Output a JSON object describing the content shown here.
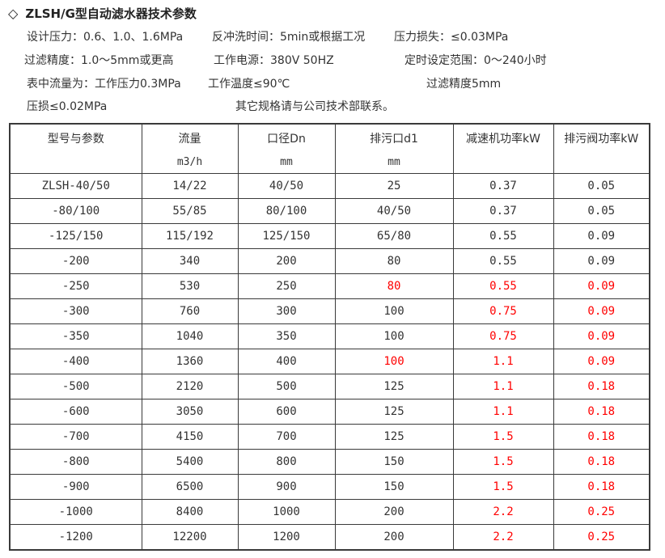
{
  "title": {
    "diamond": "◇",
    "text": "ZLSH/G型自动滤水器技术参数"
  },
  "params": {
    "design_pressure": "设计压力：0.6、1.0、1.6MPa",
    "backwash_time": "反冲洗时间：5min或根据工况",
    "pressure_loss": "压力损失：≤0.03MPa",
    "filter_precision": "过滤精度：1.0～5mm或更高",
    "power_supply": "工作电源：380V 50HZ",
    "timer_range": "定时设定范围：0～240小时",
    "flow_note": "表中流量为：工作压力0.3MPa",
    "working_temp": "工作温度≤90℃",
    "precision_5mm": "过滤精度5mm",
    "pressure_drop": "压损≤0.02MPa",
    "contact_note": "其它规格请与公司技术部联系。"
  },
  "colors": {
    "highlight_red": "#ff0000",
    "text": "#333333",
    "border": "#3a3a3a"
  },
  "table": {
    "columns": [
      {
        "key": "model",
        "label": "型号与参数",
        "unit": ""
      },
      {
        "key": "flow",
        "label": "流量",
        "unit": "m3/h"
      },
      {
        "key": "dn",
        "label": "口径Dn",
        "unit": "mm"
      },
      {
        "key": "d1",
        "label": "排污口d1",
        "unit": "mm"
      },
      {
        "key": "gear",
        "label": "减速机功率kW",
        "unit": ""
      },
      {
        "key": "valve",
        "label": "排污阀功率kW",
        "unit": ""
      }
    ],
    "rows": [
      {
        "model": "ZLSH-40/50",
        "flow": "14/22",
        "dn": "40/50",
        "d1": "25",
        "gear": "0.37",
        "valve": "0.05",
        "red": []
      },
      {
        "model": "-80/100",
        "flow": "55/85",
        "dn": "80/100",
        "d1": "40/50",
        "gear": "0.37",
        "valve": "0.05",
        "red": []
      },
      {
        "model": "-125/150",
        "flow": "115/192",
        "dn": "125/150",
        "d1": "65/80",
        "gear": "0.55",
        "valve": "0.09",
        "red": []
      },
      {
        "model": "-200",
        "flow": "340",
        "dn": "200",
        "d1": "80",
        "gear": "0.55",
        "valve": "0.09",
        "red": []
      },
      {
        "model": "-250",
        "flow": "530",
        "dn": "250",
        "d1": "80",
        "gear": "0.55",
        "valve": "0.09",
        "red": [
          "d1",
          "gear",
          "valve"
        ]
      },
      {
        "model": "-300",
        "flow": "760",
        "dn": "300",
        "d1": "100",
        "gear": "0.75",
        "valve": "0.09",
        "red": [
          "gear",
          "valve"
        ]
      },
      {
        "model": "-350",
        "flow": "1040",
        "dn": "350",
        "d1": "100",
        "gear": "0.75",
        "valve": "0.09",
        "red": [
          "gear",
          "valve"
        ]
      },
      {
        "model": "-400",
        "flow": "1360",
        "dn": "400",
        "d1": "100",
        "gear": "1.1",
        "valve": "0.09",
        "red": [
          "d1",
          "gear",
          "valve"
        ]
      },
      {
        "model": "-500",
        "flow": "2120",
        "dn": "500",
        "d1": "125",
        "gear": "1.1",
        "valve": "0.18",
        "red": [
          "gear",
          "valve"
        ]
      },
      {
        "model": "-600",
        "flow": "3050",
        "dn": "600",
        "d1": "125",
        "gear": "1.1",
        "valve": "0.18",
        "red": [
          "gear",
          "valve"
        ]
      },
      {
        "model": "-700",
        "flow": "4150",
        "dn": "700",
        "d1": "125",
        "gear": "1.5",
        "valve": "0.18",
        "red": [
          "gear",
          "valve"
        ]
      },
      {
        "model": "-800",
        "flow": "5400",
        "dn": "800",
        "d1": "150",
        "gear": "1.5",
        "valve": "0.18",
        "red": [
          "gear",
          "valve"
        ]
      },
      {
        "model": "-900",
        "flow": "6500",
        "dn": "900",
        "d1": "150",
        "gear": "1.5",
        "valve": "0.18",
        "red": [
          "gear",
          "valve"
        ]
      },
      {
        "model": "-1000",
        "flow": "8400",
        "dn": "1000",
        "d1": "200",
        "gear": "2.2",
        "valve": "0.25",
        "red": [
          "gear",
          "valve"
        ]
      },
      {
        "model": "-1200",
        "flow": "12200",
        "dn": "1200",
        "d1": "200",
        "gear": "2.2",
        "valve": "0.25",
        "red": [
          "gear",
          "valve"
        ]
      }
    ]
  }
}
